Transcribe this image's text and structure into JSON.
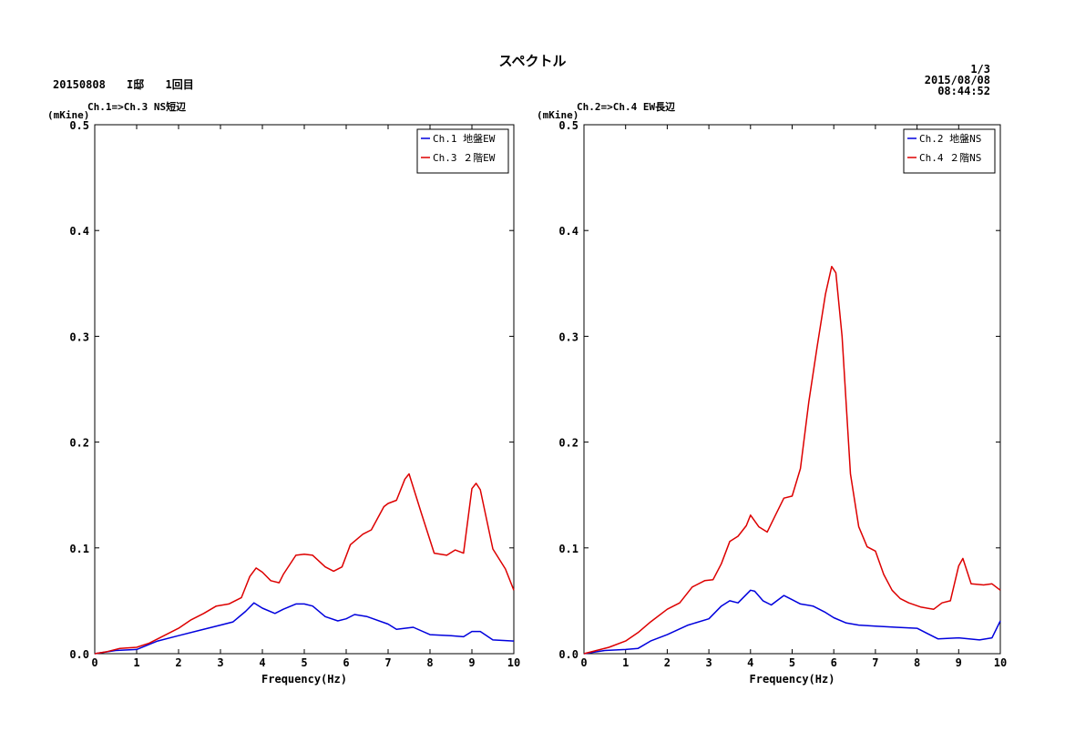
{
  "header": {
    "title": "スペクトル",
    "left_items": [
      "20150808",
      "I邸",
      "1回目"
    ],
    "page": "1/3",
    "date": "2015/08/08",
    "time": "08:44:52"
  },
  "colors": {
    "blue": "#0000dd",
    "red": "#dd0000"
  },
  "chart_data": [
    {
      "type": "line",
      "title": "Ch.1=>Ch.3 NS短辺",
      "ylabel": "(mKine)",
      "xlabel": "Frequency(Hz)",
      "xlim": [
        0,
        10
      ],
      "ylim": [
        0,
        0.5
      ],
      "xticks": [
        0,
        1,
        2,
        3,
        4,
        5,
        6,
        7,
        8,
        9,
        10
      ],
      "yticks": [
        0.0,
        0.1,
        0.2,
        0.3,
        0.4,
        0.5
      ],
      "ytick_labels": [
        "0.0",
        "0.1",
        "0.2",
        "0.3",
        "0.4",
        "0.5"
      ],
      "grid": false,
      "legend_position": "top-right",
      "series": [
        {
          "name": "Ch.1 地盤EW",
          "color": "#0000dd",
          "x": [
            0,
            0.5,
            1,
            1.5,
            2,
            2.5,
            3,
            3.3,
            3.6,
            3.8,
            4,
            4.3,
            4.5,
            4.8,
            5,
            5.2,
            5.5,
            5.8,
            6,
            6.2,
            6.5,
            7,
            7.2,
            7.6,
            8,
            8.5,
            8.8,
            9.0,
            9.2,
            9.5,
            10
          ],
          "y": [
            0,
            0.003,
            0.004,
            0.012,
            0.017,
            0.022,
            0.027,
            0.03,
            0.04,
            0.048,
            0.043,
            0.038,
            0.042,
            0.047,
            0.047,
            0.045,
            0.035,
            0.031,
            0.033,
            0.037,
            0.035,
            0.028,
            0.023,
            0.025,
            0.018,
            0.017,
            0.016,
            0.021,
            0.021,
            0.013,
            0.012
          ]
        },
        {
          "name": "Ch.3 ２階EW",
          "color": "#dd0000",
          "x": [
            0,
            0.3,
            0.6,
            1,
            1.3,
            1.6,
            2,
            2.3,
            2.6,
            2.9,
            3.2,
            3.5,
            3.7,
            3.85,
            4,
            4.2,
            4.4,
            4.5,
            4.8,
            5,
            5.2,
            5.5,
            5.7,
            5.9,
            6.1,
            6.4,
            6.6,
            6.9,
            7.0,
            7.2,
            7.4,
            7.5,
            7.8,
            8.1,
            8.4,
            8.6,
            8.8,
            9.0,
            9.1,
            9.2,
            9.5,
            9.8,
            10
          ],
          "y": [
            0,
            0.002,
            0.005,
            0.006,
            0.01,
            0.016,
            0.024,
            0.032,
            0.038,
            0.045,
            0.047,
            0.053,
            0.073,
            0.081,
            0.077,
            0.069,
            0.067,
            0.075,
            0.093,
            0.094,
            0.093,
            0.082,
            0.078,
            0.082,
            0.103,
            0.113,
            0.117,
            0.139,
            0.142,
            0.145,
            0.165,
            0.17,
            0.132,
            0.095,
            0.093,
            0.098,
            0.095,
            0.156,
            0.161,
            0.155,
            0.099,
            0.08,
            0.06
          ]
        }
      ]
    },
    {
      "type": "line",
      "title": "Ch.2=>Ch.4 EW長辺",
      "ylabel": "(mKine)",
      "xlabel": "Frequency(Hz)",
      "xlim": [
        0,
        10
      ],
      "ylim": [
        0,
        0.5
      ],
      "xticks": [
        0,
        1,
        2,
        3,
        4,
        5,
        6,
        7,
        8,
        9,
        10
      ],
      "yticks": [
        0.0,
        0.1,
        0.2,
        0.3,
        0.4,
        0.5
      ],
      "ytick_labels": [
        "0.0",
        "0.1",
        "0.2",
        "0.3",
        "0.4",
        "0.5"
      ],
      "grid": false,
      "legend_position": "top-right",
      "series": [
        {
          "name": "Ch.2 地盤NS",
          "color": "#0000dd",
          "x": [
            0,
            0.5,
            1,
            1.3,
            1.6,
            2,
            2.5,
            3,
            3.3,
            3.5,
            3.7,
            4,
            4.1,
            4.3,
            4.5,
            4.8,
            5,
            5.2,
            5.5,
            5.8,
            6,
            6.3,
            6.6,
            7,
            7.5,
            8,
            8.5,
            9.0,
            9.5,
            9.8,
            10
          ],
          "y": [
            0,
            0.003,
            0.004,
            0.005,
            0.012,
            0.018,
            0.027,
            0.033,
            0.045,
            0.05,
            0.048,
            0.06,
            0.059,
            0.05,
            0.046,
            0.055,
            0.051,
            0.047,
            0.045,
            0.039,
            0.034,
            0.029,
            0.027,
            0.026,
            0.025,
            0.024,
            0.014,
            0.015,
            0.013,
            0.015,
            0.031
          ]
        },
        {
          "name": "Ch.4 ２階NS",
          "color": "#dd0000",
          "x": [
            0,
            0.3,
            0.6,
            1,
            1.3,
            1.6,
            2,
            2.3,
            2.6,
            2.9,
            3.1,
            3.3,
            3.5,
            3.7,
            3.9,
            4.0,
            4.2,
            4.4,
            4.6,
            4.8,
            5.0,
            5.2,
            5.4,
            5.6,
            5.8,
            5.95,
            6.05,
            6.2,
            6.4,
            6.6,
            6.8,
            7.0,
            7.2,
            7.4,
            7.6,
            7.8,
            8.1,
            8.4,
            8.6,
            8.8,
            9.0,
            9.1,
            9.3,
            9.6,
            9.8,
            10
          ],
          "y": [
            0,
            0.003,
            0.006,
            0.012,
            0.02,
            0.03,
            0.042,
            0.048,
            0.063,
            0.069,
            0.07,
            0.085,
            0.106,
            0.111,
            0.121,
            0.131,
            0.12,
            0.115,
            0.131,
            0.147,
            0.149,
            0.175,
            0.238,
            0.29,
            0.34,
            0.366,
            0.36,
            0.3,
            0.17,
            0.12,
            0.101,
            0.097,
            0.075,
            0.06,
            0.052,
            0.048,
            0.044,
            0.042,
            0.048,
            0.05,
            0.083,
            0.09,
            0.066,
            0.065,
            0.066,
            0.06
          ]
        }
      ]
    }
  ]
}
